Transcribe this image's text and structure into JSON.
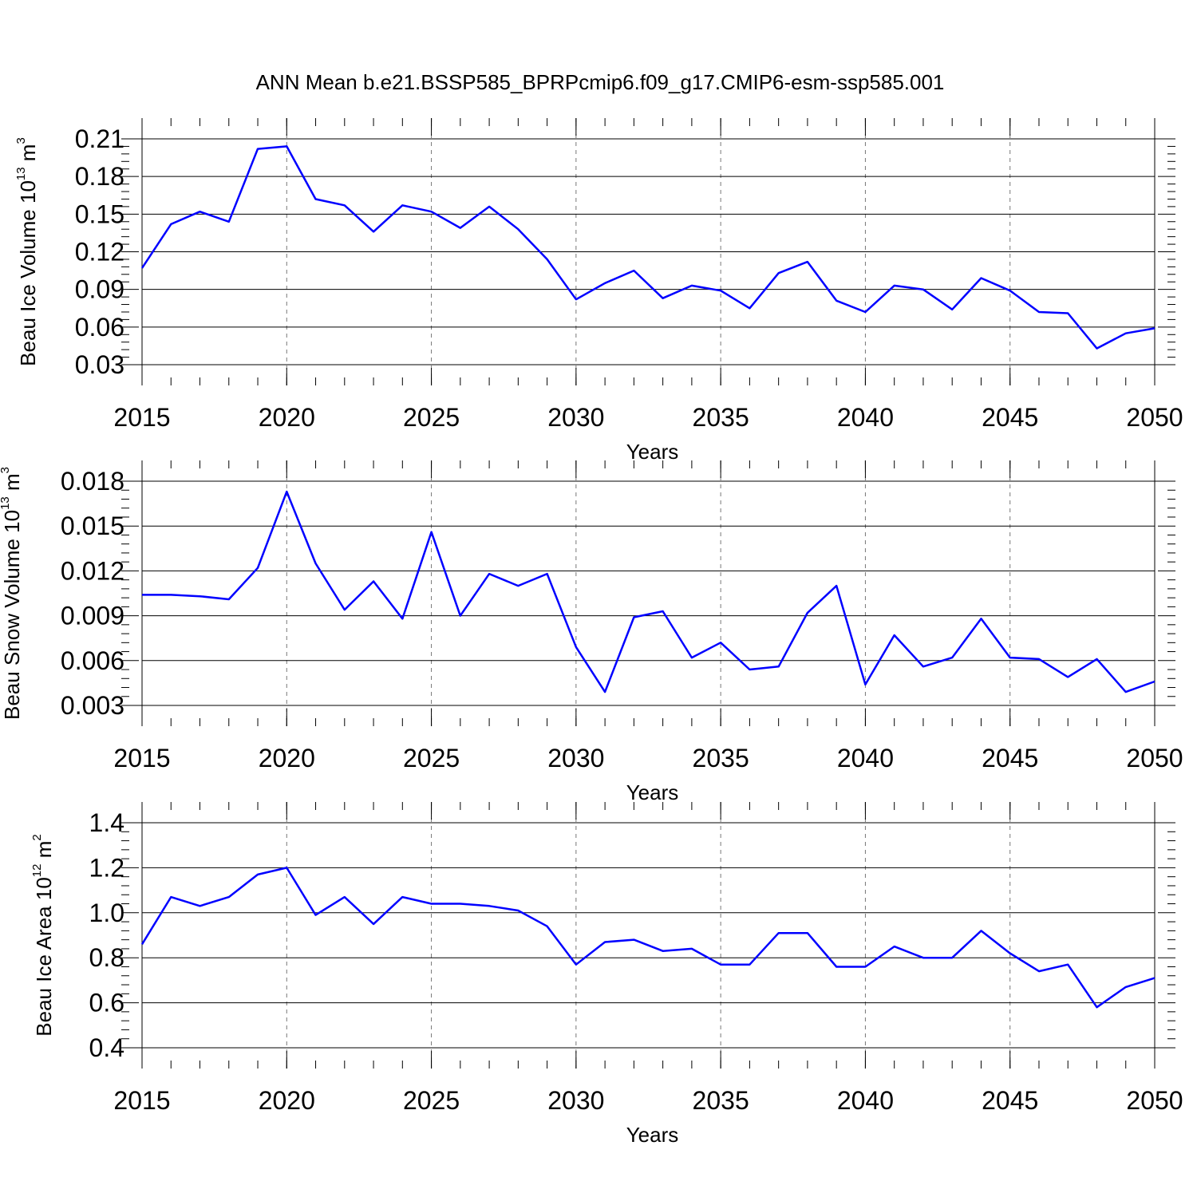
{
  "title": "ANN Mean b.e21.BSSP585_BPRPcmip6.f09_g17.CMIP6-esm-ssp585.001",
  "line_color": "#0000ff",
  "chart_data": [
    {
      "type": "line",
      "xlabel": "Years",
      "ylabel": {
        "prefix": "Beau Ice Volume 10",
        "exp": "13",
        "unit": " m",
        "unit_exp": "3"
      },
      "xlim": [
        2015,
        2050
      ],
      "ylim": [
        0.03,
        0.21
      ],
      "x_ticks": [
        "2015",
        "2020",
        "2025",
        "2030",
        "2035",
        "2040",
        "2045",
        "2050"
      ],
      "y_ticks": [
        "0.03",
        "0.06",
        "0.09",
        "0.12",
        "0.15",
        "0.18",
        "0.21"
      ],
      "x": [
        2015,
        2016,
        2017,
        2018,
        2019,
        2020,
        2021,
        2022,
        2023,
        2024,
        2025,
        2026,
        2027,
        2028,
        2029,
        2030,
        2031,
        2032,
        2033,
        2034,
        2035,
        2036,
        2037,
        2038,
        2039,
        2040,
        2041,
        2042,
        2043,
        2044,
        2045,
        2046,
        2047,
        2048,
        2049,
        2050
      ],
      "series": [
        {
          "values": [
            0.107,
            0.142,
            0.152,
            0.144,
            0.202,
            0.204,
            0.162,
            0.157,
            0.136,
            0.157,
            0.152,
            0.139,
            0.156,
            0.138,
            0.114,
            0.082,
            0.095,
            0.105,
            0.083,
            0.093,
            0.089,
            0.075,
            0.103,
            0.112,
            0.081,
            0.072,
            0.093,
            0.09,
            0.074,
            0.099,
            0.089,
            0.072,
            0.071,
            0.043,
            0.055,
            0.059
          ]
        }
      ]
    },
    {
      "type": "line",
      "xlabel": "Years",
      "ylabel": {
        "prefix": "Beau Snow Volume 10",
        "exp": "13",
        "unit": " m",
        "unit_exp": "3"
      },
      "xlim": [
        2015,
        2050
      ],
      "ylim": [
        0.003,
        0.018
      ],
      "x_ticks": [
        "2015",
        "2020",
        "2025",
        "2030",
        "2035",
        "2040",
        "2045",
        "2050"
      ],
      "y_ticks": [
        "0.003",
        "0.006",
        "0.009",
        "0.012",
        "0.015",
        "0.018"
      ],
      "x": [
        2015,
        2016,
        2017,
        2018,
        2019,
        2020,
        2021,
        2022,
        2023,
        2024,
        2025,
        2026,
        2027,
        2028,
        2029,
        2030,
        2031,
        2032,
        2033,
        2034,
        2035,
        2036,
        2037,
        2038,
        2039,
        2040,
        2041,
        2042,
        2043,
        2044,
        2045,
        2046,
        2047,
        2048,
        2049,
        2050
      ],
      "series": [
        {
          "values": [
            0.0104,
            0.0104,
            0.0103,
            0.0101,
            0.0122,
            0.0173,
            0.0125,
            0.0094,
            0.0113,
            0.0088,
            0.0146,
            0.009,
            0.0118,
            0.011,
            0.0118,
            0.0069,
            0.0039,
            0.0089,
            0.0093,
            0.0062,
            0.0072,
            0.0054,
            0.0056,
            0.0092,
            0.011,
            0.0044,
            0.0077,
            0.0056,
            0.0062,
            0.0088,
            0.0062,
            0.0061,
            0.0049,
            0.0061,
            0.0039,
            0.0046
          ]
        }
      ]
    },
    {
      "type": "line",
      "xlabel": "Years",
      "ylabel": {
        "prefix": "Beau Ice Area 10",
        "exp": "12",
        "unit": " m",
        "unit_exp": "2"
      },
      "xlim": [
        2015,
        2050
      ],
      "ylim": [
        0.4,
        1.4
      ],
      "x_ticks": [
        "2015",
        "2020",
        "2025",
        "2030",
        "2035",
        "2040",
        "2045",
        "2050"
      ],
      "y_ticks": [
        "0.4",
        "0.6",
        "0.8",
        "1.0",
        "1.2",
        "1.4"
      ],
      "x": [
        2015,
        2016,
        2017,
        2018,
        2019,
        2020,
        2021,
        2022,
        2023,
        2024,
        2025,
        2026,
        2027,
        2028,
        2029,
        2030,
        2031,
        2032,
        2033,
        2034,
        2035,
        2036,
        2037,
        2038,
        2039,
        2040,
        2041,
        2042,
        2043,
        2044,
        2045,
        2046,
        2047,
        2048,
        2049,
        2050
      ],
      "series": [
        {
          "values": [
            0.86,
            1.07,
            1.03,
            1.07,
            1.17,
            1.2,
            0.99,
            1.07,
            0.95,
            1.07,
            1.04,
            1.04,
            1.03,
            1.01,
            0.94,
            0.77,
            0.87,
            0.88,
            0.83,
            0.84,
            0.77,
            0.77,
            0.91,
            0.91,
            0.76,
            0.76,
            0.85,
            0.8,
            0.8,
            0.92,
            0.82,
            0.74,
            0.77,
            0.58,
            0.67,
            0.71
          ]
        }
      ]
    }
  ]
}
